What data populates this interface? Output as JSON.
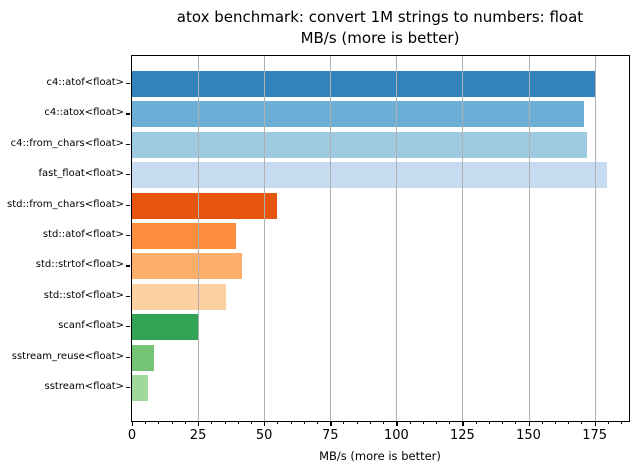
{
  "chart_data": {
    "type": "bar",
    "orientation": "horizontal",
    "title_lines": [
      "atox benchmark: convert 1M strings to numbers: float",
      "MB/s (more is better)"
    ],
    "xlabel": "MB/s (more is better)",
    "categories": [
      "c4::atof<float>",
      "c4::atox<float>",
      "c4::from_chars<float>",
      "fast_float<float>",
      "std::from_chars<float>",
      "std::atof<float>",
      "std::strtof<float>",
      "std::stof<float>",
      "scanf<float>",
      "sstream_reuse<float>",
      "sstream<float>"
    ],
    "values": [
      175,
      171,
      172,
      179.5,
      55,
      39.5,
      41.5,
      35.5,
      25,
      8.3,
      6
    ],
    "bar_colors": [
      "#3182bd",
      "#6baed6",
      "#9ecae1",
      "#c6dbef",
      "#e6550d",
      "#fd8d3c",
      "#fdae6b",
      "#fdd0a2",
      "#31a354",
      "#74c476",
      "#a1d99b"
    ],
    "xlim": [
      0,
      188
    ],
    "xticks": [
      0,
      25,
      50,
      75,
      100,
      125,
      150,
      175
    ],
    "minor_tick_step": 5,
    "grid": "vertical-major, drawn over bars",
    "grid_color": "#b0b0b0",
    "legend": "none",
    "background_color": "#ffffff"
  }
}
